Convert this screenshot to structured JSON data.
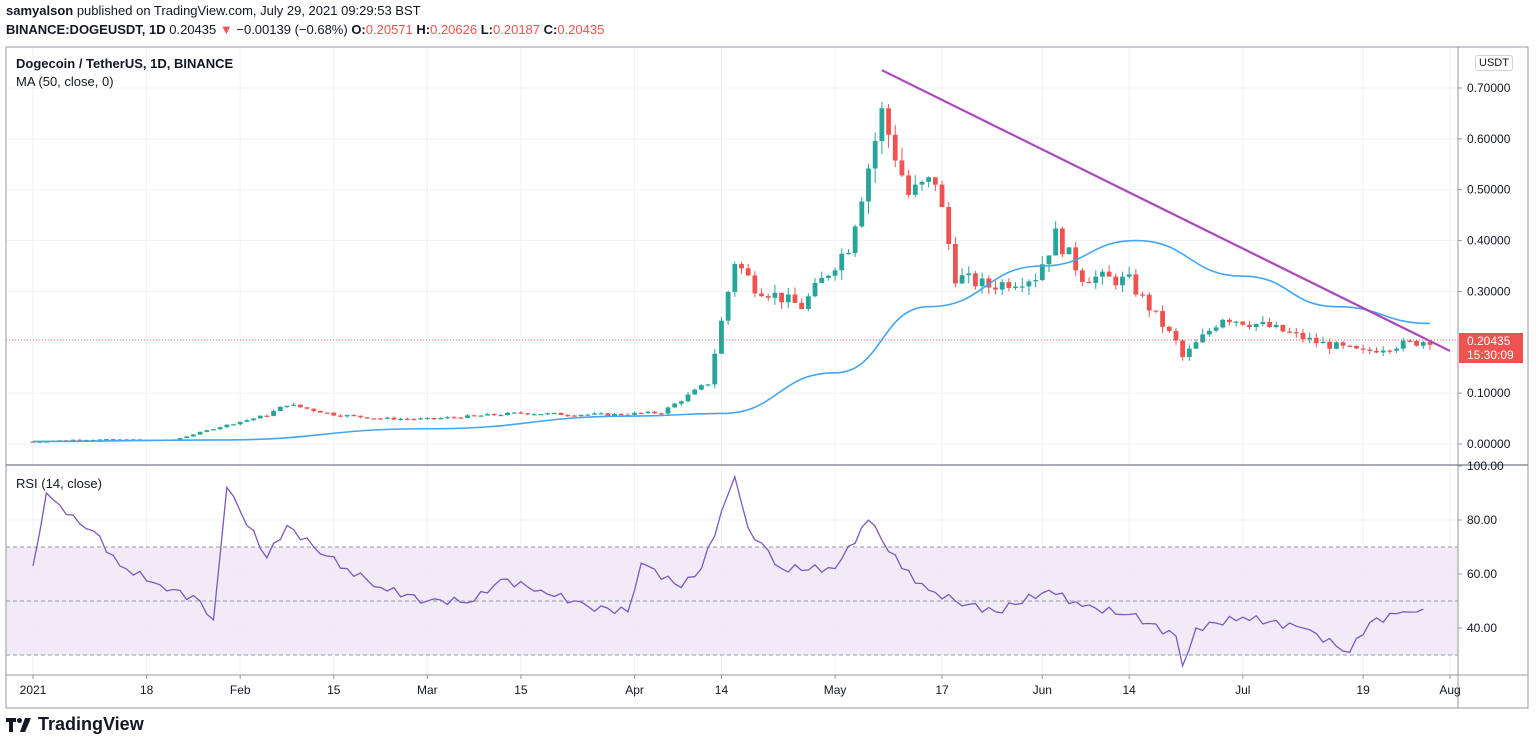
{
  "header": {
    "author": "samyalson",
    "published_text": "published on TradingView.com, July 29, 2021 09:29:53 BST",
    "symbol": "BINANCE:DOGEUSDT, 1D",
    "last": "0.20435",
    "change_arrow": "▼",
    "change": "−0.00139 (−0.68%)",
    "ohlc": [
      {
        "label": "O:",
        "value": "0.20571"
      },
      {
        "label": "H:",
        "value": "0.20626"
      },
      {
        "label": "L:",
        "value": "0.20187"
      },
      {
        "label": "C:",
        "value": "0.20435"
      }
    ]
  },
  "legend": {
    "title": "Dogecoin / TetherUS, 1D, BINANCE",
    "ma": "MA (50, close, 0)",
    "rsi": "RSI (14, close)"
  },
  "price_axis": {
    "currency_badge": "USDT",
    "ticks": [
      "0.70000",
      "0.60000",
      "0.50000",
      "0.40000",
      "0.30000",
      "0.20000",
      "0.10000",
      "0.00000"
    ],
    "last_price_tag": "0.20435",
    "countdown": "15:30:09"
  },
  "rsi_axis": {
    "ticks": [
      "100.00",
      "80.00",
      "60.00",
      "40.00"
    ]
  },
  "time_axis": {
    "ticks": [
      "2021",
      "18",
      "Feb",
      "15",
      "Mar",
      "15",
      "Apr",
      "14",
      "May",
      "17",
      "Jun",
      "14",
      "Jul",
      "19",
      "Aug"
    ]
  },
  "footer": {
    "brand": "TradingView",
    "logo_glyph": "17"
  },
  "colors": {
    "up": "#26a69a",
    "down": "#ef5350",
    "ma": "#42a5f5",
    "trendline": "#ab47bc",
    "rsi": "#7e57c2",
    "rsi_band": "#ede7f6",
    "grid": "#eef2f6"
  },
  "chart_data": [
    {
      "type": "candlestick",
      "title": "Dogecoin / TetherUS, 1D, BINANCE",
      "xlabel": "",
      "ylabel": "USDT",
      "ylim": [
        -0.02,
        0.78
      ],
      "grid": true,
      "x_ticks": [
        "2021",
        "18",
        "Feb",
        "15",
        "Mar",
        "15",
        "Apr",
        "14",
        "May",
        "17",
        "Jun",
        "14",
        "Jul",
        "19",
        "Aug"
      ],
      "y_ticks": [
        0.0,
        0.1,
        0.2,
        0.3,
        0.4,
        0.5,
        0.6,
        0.7
      ],
      "last_price": 0.20435,
      "series": [
        {
          "name": "DOGEUSDT (approx. closes, weekly samples)",
          "x": [
            "2021-01-01",
            "2021-01-08",
            "2021-01-15",
            "2021-01-22",
            "2021-01-29",
            "2021-02-05",
            "2021-02-08",
            "2021-02-15",
            "2021-02-22",
            "2021-03-01",
            "2021-03-08",
            "2021-03-15",
            "2021-03-22",
            "2021-03-29",
            "2021-04-05",
            "2021-04-12",
            "2021-04-16",
            "2021-04-19",
            "2021-04-26",
            "2021-05-03",
            "2021-05-08",
            "2021-05-12",
            "2021-05-16",
            "2021-05-19",
            "2021-05-24",
            "2021-05-31",
            "2021-06-03",
            "2021-06-07",
            "2021-06-14",
            "2021-06-21",
            "2021-06-22",
            "2021-06-28",
            "2021-07-05",
            "2021-07-12",
            "2021-07-19",
            "2021-07-22",
            "2021-07-29"
          ],
          "values": [
            0.0047,
            0.0088,
            0.0085,
            0.0079,
            0.034,
            0.057,
            0.078,
            0.058,
            0.05,
            0.049,
            0.055,
            0.061,
            0.058,
            0.058,
            0.062,
            0.12,
            0.36,
            0.31,
            0.27,
            0.39,
            0.65,
            0.49,
            0.52,
            0.33,
            0.31,
            0.33,
            0.41,
            0.33,
            0.32,
            0.2,
            0.17,
            0.25,
            0.23,
            0.2,
            0.18,
            0.19,
            0.204
          ]
        },
        {
          "name": "MA (50, close, 0)",
          "x": [
            "2021-01-01",
            "2021-01-29",
            "2021-03-01",
            "2021-04-01",
            "2021-04-14",
            "2021-05-01",
            "2021-05-15",
            "2021-06-01",
            "2021-06-15",
            "2021-07-01",
            "2021-07-15",
            "2021-07-29"
          ],
          "values": [
            0.005,
            0.008,
            0.03,
            0.055,
            0.06,
            0.14,
            0.27,
            0.35,
            0.4,
            0.33,
            0.27,
            0.237
          ]
        },
        {
          "name": "Trendline",
          "x": [
            "2021-05-08",
            "2021-08-01"
          ],
          "values": [
            0.735,
            0.183
          ]
        }
      ]
    },
    {
      "type": "line",
      "title": "RSI (14, close)",
      "ylim": [
        20,
        100
      ],
      "y_ticks": [
        40,
        60,
        80,
        100
      ],
      "bands": {
        "upper": 70,
        "middle": 50,
        "lower": 30
      },
      "series": [
        {
          "name": "RSI (14, close)",
          "x": [
            "2021-01-01",
            "2021-01-03",
            "2021-01-06",
            "2021-01-10",
            "2021-01-14",
            "2021-01-20",
            "2021-01-26",
            "2021-01-28",
            "2021-01-30",
            "2021-02-05",
            "2021-02-08",
            "2021-02-12",
            "2021-02-17",
            "2021-02-22",
            "2021-03-01",
            "2021-03-08",
            "2021-03-12",
            "2021-03-18",
            "2021-03-25",
            "2021-03-31",
            "2021-04-02",
            "2021-04-08",
            "2021-04-11",
            "2021-04-16",
            "2021-04-18",
            "2021-04-23",
            "2021-05-01",
            "2021-05-06",
            "2021-05-11",
            "2021-05-15",
            "2021-05-19",
            "2021-05-25",
            "2021-06-02",
            "2021-06-07",
            "2021-06-14",
            "2021-06-21",
            "2021-06-22",
            "2021-06-24",
            "2021-07-01",
            "2021-07-10",
            "2021-07-17",
            "2021-07-20",
            "2021-07-25",
            "2021-07-28"
          ],
          "values": [
            63,
            90,
            82,
            76,
            63,
            56,
            50,
            43,
            92,
            66,
            78,
            70,
            62,
            55,
            50,
            50,
            58,
            54,
            48,
            46,
            64,
            55,
            62,
            96,
            77,
            62,
            62,
            80,
            62,
            54,
            50,
            46,
            54,
            48,
            45,
            37,
            26,
            40,
            44,
            40,
            31,
            42,
            46,
            47
          ]
        }
      ]
    }
  ]
}
